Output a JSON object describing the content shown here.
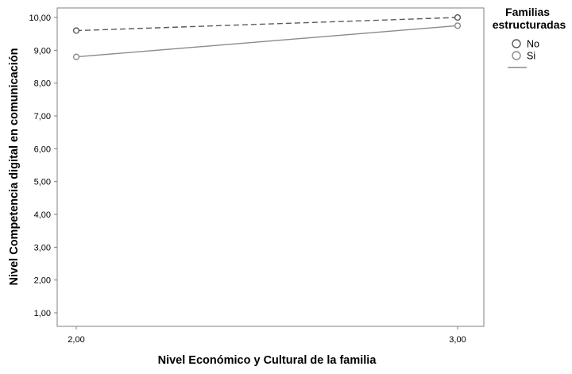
{
  "chart_data": {
    "type": "line",
    "title": "",
    "xlabel": "Nivel Económico y Cultural de la familia",
    "ylabel": "Nivel Competencia digital en comunicación",
    "x": [
      "2,00",
      "3,00"
    ],
    "y_ticks": [
      "1,00",
      "2,00",
      "3,00",
      "4,00",
      "5,00",
      "6,00",
      "7,00",
      "8,00",
      "9,00",
      "10,00"
    ],
    "ylim": [
      0.6,
      10.2
    ],
    "grid": false,
    "legend": {
      "title": "Familias estructuradas",
      "position": "top-right"
    },
    "series": [
      {
        "name": "No",
        "values": [
          9.6,
          10.0
        ],
        "line_style": "dashed",
        "color": "#5a5a5a"
      },
      {
        "name": "Si",
        "values": [
          8.8,
          9.75
        ],
        "line_style": "solid",
        "color": "#8a8a8a"
      }
    ]
  }
}
